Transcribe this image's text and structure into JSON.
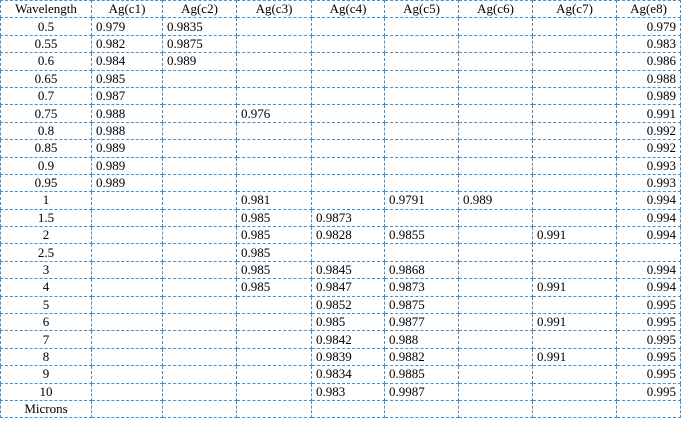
{
  "table": {
    "headers": [
      "Wavelength",
      "Ag(c1)",
      "Ag(c2)",
      "Ag(c3)",
      "Ag(c4)",
      "Ag(c5)",
      "Ag(c6)",
      "Ag(c7)",
      "Ag(e8)"
    ],
    "rows": [
      [
        "0.5",
        "0.979",
        "0.9835",
        "",
        "",
        "",
        "",
        "",
        "0.979"
      ],
      [
        "0.55",
        "0.982",
        "0.9875",
        "",
        "",
        "",
        "",
        "",
        "0.983"
      ],
      [
        "0.6",
        "0.984",
        "0.989",
        "",
        "",
        "",
        "",
        "",
        "0.986"
      ],
      [
        "0.65",
        "0.985",
        "",
        "",
        "",
        "",
        "",
        "",
        "0.988"
      ],
      [
        "0.7",
        "0.987",
        "",
        "",
        "",
        "",
        "",
        "",
        "0.989"
      ],
      [
        "0.75",
        "0.988",
        "",
        "0.976",
        "",
        "",
        "",
        "",
        "0.991"
      ],
      [
        "0.8",
        "0.988",
        "",
        "",
        "",
        "",
        "",
        "",
        "0.992"
      ],
      [
        "0.85",
        "0.989",
        "",
        "",
        "",
        "",
        "",
        "",
        "0.992"
      ],
      [
        "0.9",
        "0.989",
        "",
        "",
        "",
        "",
        "",
        "",
        "0.993"
      ],
      [
        "0.95",
        "0.989",
        "",
        "",
        "",
        "",
        "",
        "",
        "0.993"
      ],
      [
        "1",
        "",
        "",
        "0.981",
        "",
        "0.9791",
        "0.989",
        "",
        "0.994"
      ],
      [
        "1.5",
        "",
        "",
        "0.985",
        "0.9873",
        "",
        "",
        "",
        "0.994"
      ],
      [
        "2",
        "",
        "",
        "0.985",
        "0.9828",
        "0.9855",
        "",
        "0.991",
        "0.994"
      ],
      [
        "2.5",
        "",
        "",
        "0.985",
        "",
        "",
        "",
        "",
        ""
      ],
      [
        "3",
        "",
        "",
        "0.985",
        "0.9845",
        "0.9868",
        "",
        "",
        "0.994"
      ],
      [
        "4",
        "",
        "",
        "0.985",
        "0.9847",
        "0.9873",
        "",
        "0.991",
        "0.994"
      ],
      [
        "5",
        "",
        "",
        "",
        "0.9852",
        "0.9875",
        "",
        "",
        "0.995"
      ],
      [
        "6",
        "",
        "",
        "",
        "0.985",
        "0.9877",
        "",
        "0.991",
        "0.995"
      ],
      [
        "7",
        "",
        "",
        "",
        "0.9842",
        "0.988",
        "",
        "",
        "0.995"
      ],
      [
        "8",
        "",
        "",
        "",
        "0.9839",
        "0.9882",
        "",
        "0.991",
        "0.995"
      ],
      [
        "9",
        "",
        "",
        "",
        "0.9834",
        "0.9885",
        "",
        "",
        "0.995"
      ],
      [
        "10",
        "",
        "",
        "",
        "0.983",
        "0.9987",
        "",
        "",
        "0.995"
      ],
      [
        "Microns",
        "",
        "",
        "",
        "",
        "",
        "",
        "",
        ""
      ]
    ]
  }
}
